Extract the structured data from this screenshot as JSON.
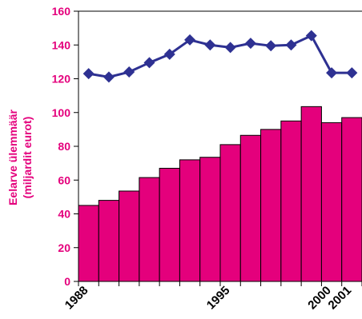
{
  "chart_data": {
    "type": "bar",
    "title": "",
    "ylabel_lines": [
      "Eelarve ülemmäär",
      "(miljardit eurot)"
    ],
    "ylim": [
      0,
      160
    ],
    "yticks": [
      0,
      20,
      40,
      60,
      80,
      100,
      120,
      140,
      160
    ],
    "grid": "top-border-only",
    "categories": [
      "1988",
      "1989",
      "1990",
      "1991",
      "1992",
      "1993",
      "1994",
      "1995",
      "1996",
      "1997",
      "1998",
      "1999",
      "2000",
      "2001"
    ],
    "x_tick_labels": [
      {
        "category": "1988",
        "label": "1988"
      },
      {
        "category": "1995",
        "label": "1995"
      },
      {
        "category": "2000",
        "label": "2000"
      },
      {
        "category": "2001",
        "label": "2001"
      }
    ],
    "series": [
      {
        "kind": "bar",
        "color": "#e4007c",
        "values": [
          45,
          48,
          53.5,
          61.5,
          67,
          72,
          73.5,
          81,
          86.5,
          90,
          95,
          103.5,
          94,
          97
        ]
      },
      {
        "kind": "line",
        "marker": "diamond",
        "color": "#2e3192",
        "values": [
          123,
          121,
          124,
          129.5,
          134.5,
          143,
          140,
          138.5,
          141,
          139.5,
          140,
          145.5,
          123.5,
          123.5
        ]
      }
    ]
  },
  "colors": {
    "bar": "#e4007c",
    "line": "#2e3192",
    "axis_text": "#e4007c",
    "axis": "#000000"
  }
}
